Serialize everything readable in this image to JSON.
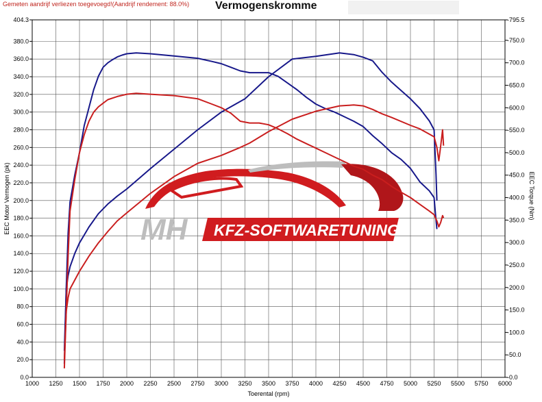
{
  "header": {
    "note": "Gemeten aandrijf verliezen toegevoegd!(Aandrijf rendement: 88.0%)",
    "title": "Vermogenskromme"
  },
  "watermark": {
    "brand_left": "MH",
    "brand_right": "KFZ-SOFTWARETUNING",
    "brand_colors": {
      "red": "#d01c1f",
      "grey": "#bdbdbd"
    }
  },
  "chart_data": {
    "type": "line",
    "title": "Vermogenskromme",
    "xlabel": "Toerental (rpm)",
    "ylabel": "EEC Motor Vermogen (pk)",
    "y2label": "EEC Torque (Nm)",
    "xlim": [
      1000,
      6000
    ],
    "ylim": [
      0,
      404.3
    ],
    "y2lim": [
      0,
      795.5
    ],
    "x_ticks": [
      "1000",
      "1250",
      "1500",
      "1750",
      "2000",
      "2250",
      "2500",
      "2750",
      "3000",
      "3250",
      "3500",
      "3750",
      "4000",
      "4250",
      "4500",
      "4750",
      "5000",
      "5250",
      "5500",
      "5750",
      "6000"
    ],
    "y_ticks": [
      "404.3",
      "380.0",
      "360.0",
      "340.0",
      "320.0",
      "300.0",
      "280.0",
      "260.0",
      "240.0",
      "220.0",
      "200.0",
      "180.0",
      "160.0",
      "140.0",
      "120.0",
      "100.0",
      "80.0",
      "60.0",
      "40.0",
      "20.0",
      "0.0"
    ],
    "y2_ticks": [
      "795.5",
      "750.0",
      "700.0",
      "650.0",
      "600.0",
      "550.0",
      "500.0",
      "450.0",
      "400.0",
      "350.0",
      "300.0",
      "250.0",
      "200.0",
      "150.0",
      "100.0",
      "50.0",
      "0.0"
    ],
    "grid": true,
    "series": [
      {
        "name": "",
        "color": "#17188a",
        "axis": "right",
        "points": [
          [
            1340,
            30
          ],
          [
            1360,
            200
          ],
          [
            1380,
            320
          ],
          [
            1400,
            390
          ],
          [
            1450,
            450
          ],
          [
            1500,
            500
          ],
          [
            1550,
            560
          ],
          [
            1600,
            600
          ],
          [
            1650,
            640
          ],
          [
            1700,
            670
          ],
          [
            1750,
            690
          ],
          [
            1800,
            700
          ],
          [
            1850,
            707
          ],
          [
            1900,
            713
          ],
          [
            1950,
            717
          ],
          [
            2000,
            720
          ],
          [
            2100,
            722
          ],
          [
            2250,
            720
          ],
          [
            2500,
            715
          ],
          [
            2750,
            710
          ],
          [
            2900,
            703
          ],
          [
            3000,
            698
          ],
          [
            3100,
            690
          ],
          [
            3200,
            682
          ],
          [
            3300,
            678
          ],
          [
            3400,
            678
          ],
          [
            3500,
            678
          ],
          [
            3600,
            670
          ],
          [
            3700,
            655
          ],
          [
            3800,
            640
          ],
          [
            3900,
            623
          ],
          [
            4000,
            608
          ],
          [
            4100,
            598
          ],
          [
            4200,
            590
          ],
          [
            4300,
            580
          ],
          [
            4400,
            570
          ],
          [
            4500,
            558
          ],
          [
            4600,
            538
          ],
          [
            4700,
            520
          ],
          [
            4800,
            500
          ],
          [
            4900,
            485
          ],
          [
            5000,
            465
          ],
          [
            5100,
            435
          ],
          [
            5200,
            415
          ],
          [
            5250,
            400
          ],
          [
            5270,
            350
          ],
          [
            5280,
            330
          ]
        ]
      },
      {
        "name": "",
        "color": "#17188a",
        "axis": "left",
        "points": [
          [
            1340,
            30
          ],
          [
            1360,
            100
          ],
          [
            1380,
            115
          ],
          [
            1400,
            125
          ],
          [
            1450,
            140
          ],
          [
            1500,
            152
          ],
          [
            1600,
            170
          ],
          [
            1700,
            185
          ],
          [
            1800,
            196
          ],
          [
            1900,
            205
          ],
          [
            2000,
            213
          ],
          [
            2250,
            236
          ],
          [
            2500,
            258
          ],
          [
            2750,
            280
          ],
          [
            3000,
            300
          ],
          [
            3250,
            315
          ],
          [
            3500,
            340
          ],
          [
            3750,
            360
          ],
          [
            4000,
            363
          ],
          [
            4250,
            367
          ],
          [
            4400,
            365
          ],
          [
            4500,
            362
          ],
          [
            4600,
            358
          ],
          [
            4700,
            345
          ],
          [
            4800,
            334
          ],
          [
            5000,
            315
          ],
          [
            5100,
            304
          ],
          [
            5200,
            290
          ],
          [
            5250,
            280
          ],
          [
            5270,
            230
          ],
          [
            5280,
            200
          ]
        ]
      },
      {
        "name": "",
        "color": "#c91e1e",
        "axis": "right",
        "points": [
          [
            1340,
            20
          ],
          [
            1360,
            150
          ],
          [
            1380,
            270
          ],
          [
            1400,
            370
          ],
          [
            1450,
            440
          ],
          [
            1500,
            500
          ],
          [
            1550,
            540
          ],
          [
            1600,
            570
          ],
          [
            1650,
            590
          ],
          [
            1700,
            602
          ],
          [
            1750,
            610
          ],
          [
            1800,
            618
          ],
          [
            1900,
            625
          ],
          [
            2000,
            630
          ],
          [
            2100,
            632
          ],
          [
            2250,
            630
          ],
          [
            2500,
            627
          ],
          [
            2750,
            620
          ],
          [
            2900,
            608
          ],
          [
            3000,
            600
          ],
          [
            3100,
            588
          ],
          [
            3200,
            570
          ],
          [
            3300,
            566
          ],
          [
            3400,
            566
          ],
          [
            3500,
            562
          ],
          [
            3600,
            553
          ],
          [
            3700,
            542
          ],
          [
            3800,
            530
          ],
          [
            3900,
            520
          ],
          [
            4000,
            510
          ],
          [
            4100,
            500
          ],
          [
            4200,
            490
          ],
          [
            4300,
            480
          ],
          [
            4400,
            470
          ],
          [
            4500,
            463
          ],
          [
            4600,
            450
          ],
          [
            4700,
            440
          ],
          [
            4800,
            425
          ],
          [
            4900,
            412
          ],
          [
            5000,
            400
          ],
          [
            5100,
            385
          ],
          [
            5200,
            370
          ],
          [
            5250,
            362
          ],
          [
            5280,
            348
          ],
          [
            5300,
            335
          ],
          [
            5320,
            345
          ],
          [
            5340,
            360
          ],
          [
            5350,
            355
          ]
        ]
      },
      {
        "name": "",
        "color": "#c91e1e",
        "axis": "left",
        "points": [
          [
            1340,
            20
          ],
          [
            1360,
            75
          ],
          [
            1380,
            90
          ],
          [
            1400,
            100
          ],
          [
            1450,
            110
          ],
          [
            1500,
            120
          ],
          [
            1600,
            137
          ],
          [
            1700,
            152
          ],
          [
            1800,
            165
          ],
          [
            1900,
            177
          ],
          [
            2000,
            186
          ],
          [
            2250,
            208
          ],
          [
            2500,
            227
          ],
          [
            2750,
            242
          ],
          [
            3000,
            251
          ],
          [
            3200,
            260
          ],
          [
            3300,
            265
          ],
          [
            3500,
            278
          ],
          [
            3750,
            292
          ],
          [
            4000,
            301
          ],
          [
            4250,
            307
          ],
          [
            4400,
            308
          ],
          [
            4500,
            307
          ],
          [
            4600,
            303
          ],
          [
            4700,
            298
          ],
          [
            4800,
            294
          ],
          [
            5000,
            285
          ],
          [
            5100,
            281
          ],
          [
            5200,
            275
          ],
          [
            5250,
            272
          ],
          [
            5280,
            260
          ],
          [
            5300,
            245
          ],
          [
            5320,
            262
          ],
          [
            5340,
            280
          ],
          [
            5350,
            262
          ]
        ]
      }
    ]
  }
}
